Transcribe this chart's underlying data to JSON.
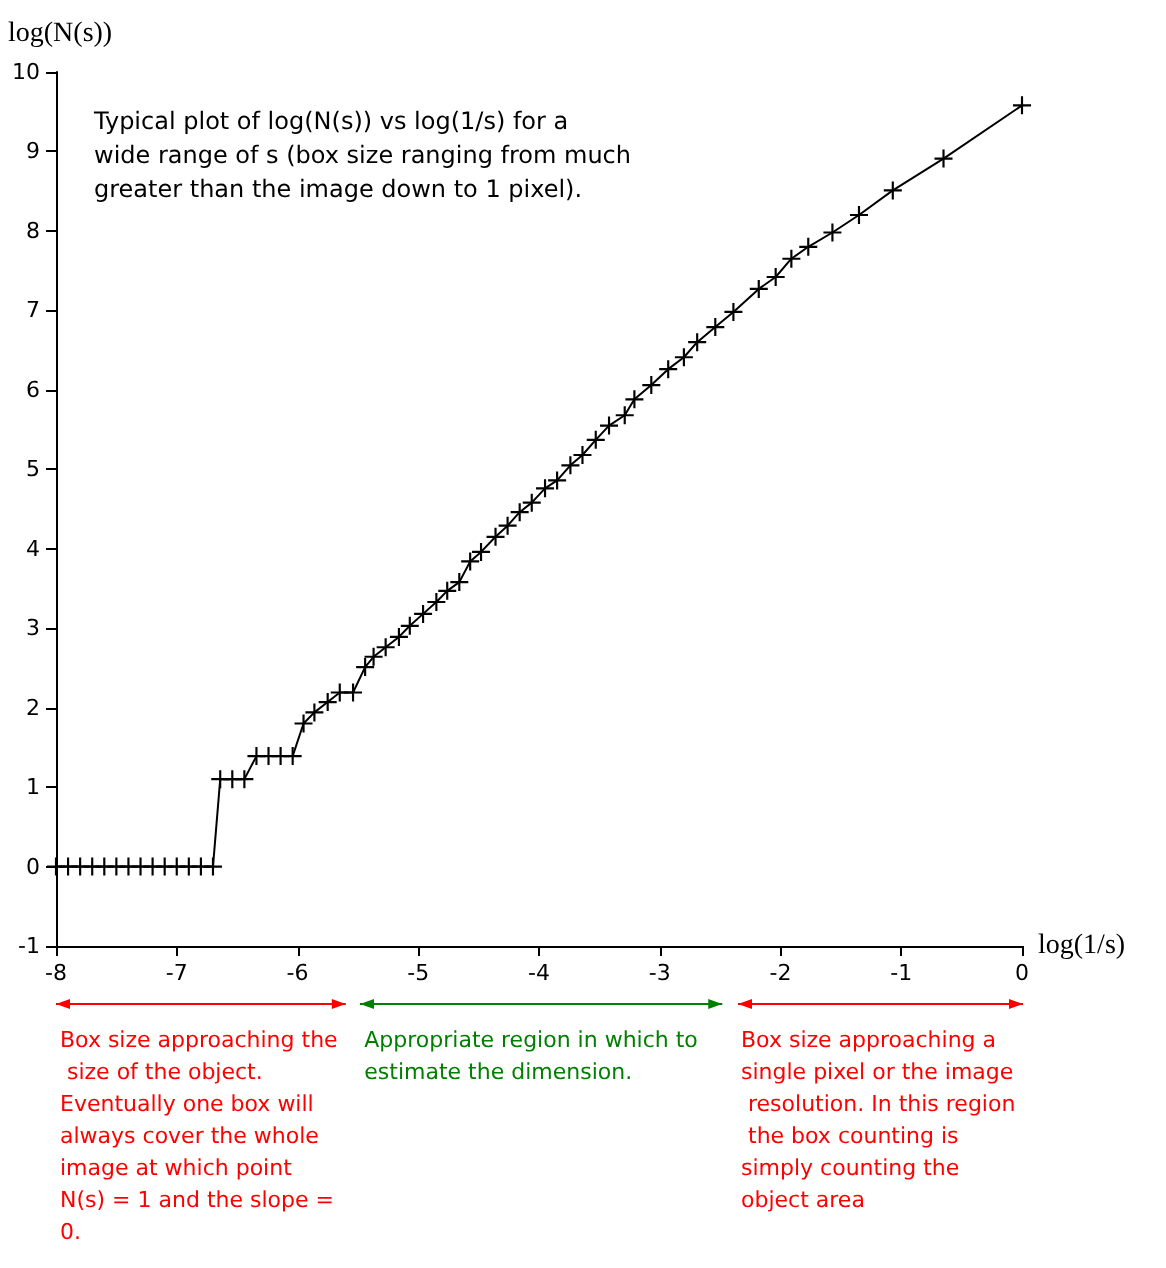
{
  "chart_data": {
    "type": "line",
    "xlabel": "log(1/s)",
    "ylabel": "log(N(s))",
    "annotations": [
      "Typical plot of log(N(s)) vs log(1/s) for a wide range of s (box size ranging from much greater than the image down to 1 pixel).",
      "Box size approaching the size of the object. Eventually one box will always cover the whole image at which point N(s) = 1 and the slope = 0.",
      "Appropriate region in which to estimate the dimension.",
      "Box size approaching a single pixel or the image resolution. In this region the box counting is simply counting the object area"
    ],
    "xlim": [
      -8,
      0
    ],
    "xticks": [
      -8,
      -7,
      -6,
      -5,
      -4,
      -3,
      -2,
      -1,
      0
    ],
    "ylim": [
      -1,
      10
    ],
    "yticks": [
      -1,
      0,
      1,
      2,
      3,
      4,
      5,
      6,
      7,
      8,
      9,
      10
    ],
    "grid": false,
    "marker": "cross",
    "line_style": "solid",
    "series": [
      {
        "color": "#000000",
        "x": [
          -8,
          -7.9,
          -7.8,
          -7.7,
          -7.6,
          -7.5,
          -7.4,
          -7.3,
          -7.2,
          -7.1,
          -7,
          -6.9,
          -6.8,
          -6.7,
          -6.64,
          -6.54,
          -6.44,
          -6.34,
          -6.24,
          -6.14,
          -6.04,
          -5.95,
          -5.86,
          -5.75,
          -5.65,
          -5.54,
          -5.44,
          -5.37,
          -5.27,
          -5.16,
          -5.07,
          -4.96,
          -4.85,
          -4.76,
          -4.66,
          -4.57,
          -4.48,
          -4.36,
          -4.26,
          -4.16,
          -4.06,
          -3.95,
          -3.85,
          -3.74,
          -3.64,
          -3.53,
          -3.42,
          -3.29,
          -3.21,
          -3.07,
          -2.93,
          -2.8,
          -2.69,
          -2.54,
          -2.39,
          -2.18,
          -2.04,
          -1.91,
          -1.77,
          -1.57,
          -1.35,
          -1.07,
          -0.65,
          0
        ],
        "values": [
          0,
          0,
          0,
          0,
          0,
          0,
          0,
          0,
          0,
          0,
          0,
          0,
          0,
          0,
          1.1,
          1.1,
          1.1,
          1.39,
          1.39,
          1.39,
          1.39,
          1.8,
          1.94,
          2.07,
          2.19,
          2.19,
          2.51,
          2.64,
          2.76,
          2.89,
          3.03,
          3.18,
          3.33,
          3.47,
          3.58,
          3.84,
          3.96,
          4.15,
          4.29,
          4.46,
          4.58,
          4.76,
          4.86,
          5.05,
          5.18,
          5.37,
          5.55,
          5.68,
          5.88,
          6.06,
          6.26,
          6.41,
          6.6,
          6.79,
          6.98,
          7.27,
          7.42,
          7.65,
          7.8,
          7.98,
          8.2,
          8.51,
          8.91,
          9.58
        ]
      }
    ]
  }
}
